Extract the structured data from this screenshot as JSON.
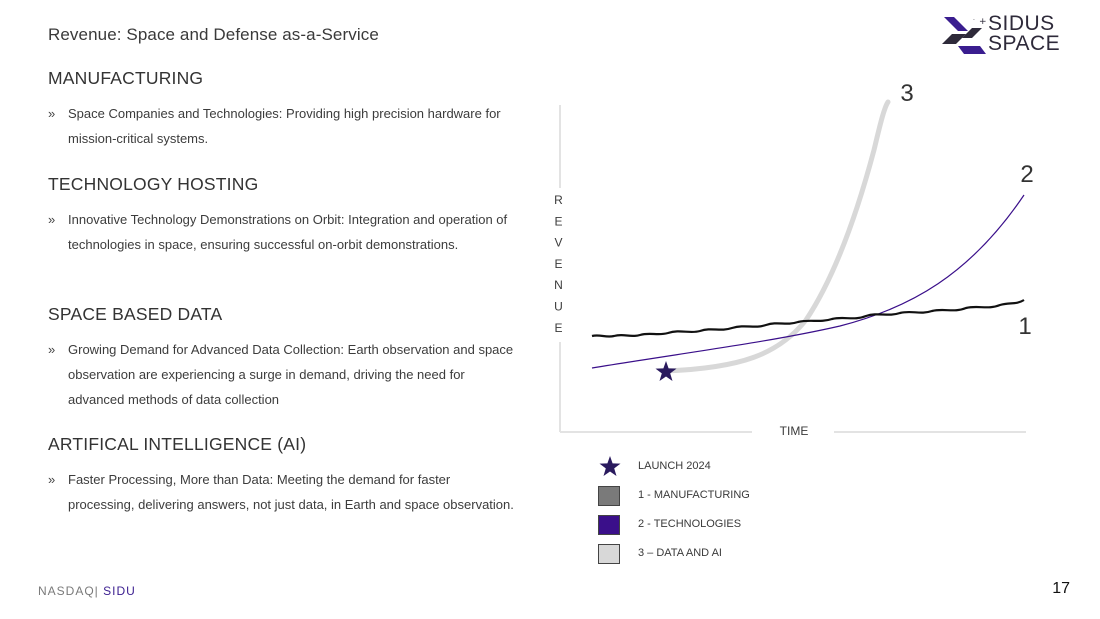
{
  "page": {
    "title": "Revenue: Space and Defense as-a-Service",
    "page_number": "17"
  },
  "logo": {
    "line1": "SIDUS",
    "line2": "SPACE"
  },
  "footer": {
    "exchange": "NASDAQ|",
    "ticker": "SIDU"
  },
  "sections": [
    {
      "heading": "MANUFACTURING",
      "bullet": "Space Companies and Technologies: Providing high precision hardware for mission-critical systems."
    },
    {
      "heading": "TECHNOLOGY HOSTING",
      "bullet": "Innovative Technology Demonstrations on Orbit: Integration and operation of technologies in space, ensuring successful on-orbit demonstrations."
    },
    {
      "heading": "SPACE BASED DATA",
      "bullet": "Growing Demand for Advanced Data Collection: Earth observation and space observation are experiencing a surge in demand, driving the need for advanced methods of data collection"
    },
    {
      "heading": "ARTIFICAL INTELLIGENCE (AI)",
      "bullet": "Faster Processing, More than Data: Meeting the demand for faster processing, delivering answers, not just data, in Earth and space observation."
    }
  ],
  "bullet_mark": "»",
  "colors": {
    "manufacturing": "#7a7a7a",
    "manufacturing_line": "#111111",
    "technologies": "#3a0f8a",
    "data_ai": "#d8d8d8",
    "star": "#2a1a5e"
  },
  "chart_data": {
    "type": "line",
    "xlabel": "TIME",
    "ylabel": "REVENUE",
    "series_labels": [
      "1",
      "2",
      "3"
    ],
    "launch_label": "LAUNCH 2024",
    "legend": [
      {
        "icon": "star-icon",
        "label": "LAUNCH 2024"
      },
      {
        "swatch": "manufacturing",
        "label": "1 - MANUFACTURING"
      },
      {
        "swatch": "technologies",
        "label": "2 - TECHNOLOGIES"
      },
      {
        "swatch": "data_ai",
        "label": "3 – DATA AND AI"
      }
    ],
    "grid": false
  }
}
